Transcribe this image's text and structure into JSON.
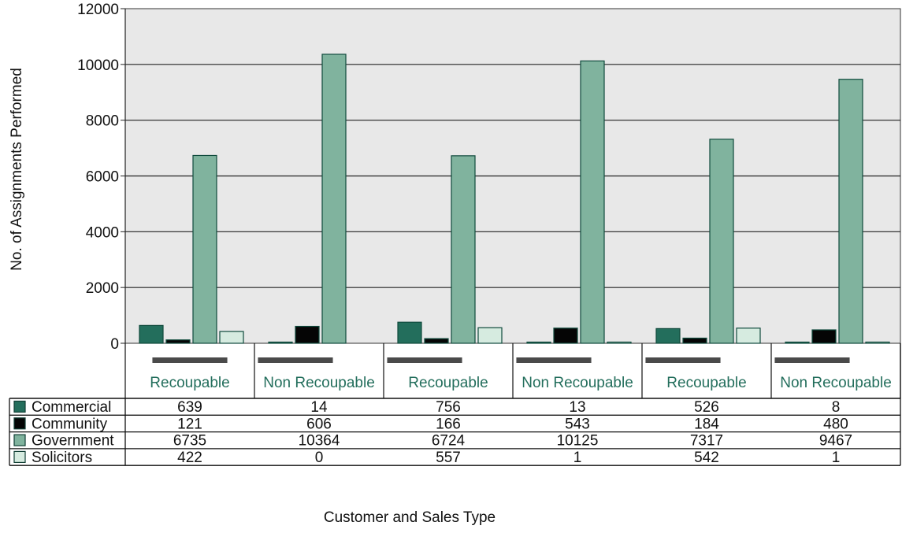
{
  "chart_data": {
    "type": "bar",
    "xlabel": "Customer and Sales Type",
    "ylabel": "No. of Assignments Performed",
    "ylim": [
      0,
      12000
    ],
    "yticks": [
      0,
      2000,
      4000,
      6000,
      8000,
      10000,
      12000
    ],
    "grid": true,
    "legend": "table-left",
    "categories": [
      "Recoupable",
      "Non Recoupable",
      "Recoupable",
      "Non Recoupable",
      "Recoupable",
      "Non Recoupable"
    ],
    "series": [
      {
        "name": "Commercial",
        "color": "#236e5c",
        "values": [
          639,
          14,
          756,
          13,
          526,
          8
        ]
      },
      {
        "name": "Community",
        "color": "#050505",
        "values": [
          121,
          606,
          166,
          543,
          184,
          480
        ]
      },
      {
        "name": "Government",
        "color": "#80b39e",
        "values": [
          6735,
          10364,
          6724,
          10125,
          7317,
          9467
        ]
      },
      {
        "name": "Solicitors",
        "color": "#d6ebe0",
        "values": [
          422,
          0,
          557,
          1,
          542,
          1
        ]
      }
    ],
    "colors": {
      "plot_background": "#e8e8e8",
      "bar_stroke": "#0f4a3c",
      "category_label": "#236e5c",
      "group_marker": "#4a4a4a"
    }
  }
}
